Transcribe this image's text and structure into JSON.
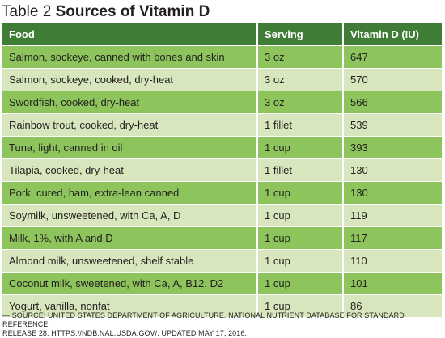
{
  "title": {
    "prefix": "Table 2",
    "main": "Sources of Vitamin D"
  },
  "table": {
    "headers": [
      "Food",
      "Serving",
      "Vitamin D (IU)"
    ],
    "rows": [
      [
        "Salmon, sockeye, canned with bones and skin",
        "3 oz",
        "647"
      ],
      [
        "Salmon, sockeye, cooked, dry-heat",
        "3 oz",
        "570"
      ],
      [
        "Swordfish, cooked, dry-heat",
        "3 oz",
        "566"
      ],
      [
        "Rainbow trout, cooked, dry-heat",
        "1 fillet",
        "539"
      ],
      [
        "Tuna, light, canned in oil",
        "1 cup",
        "393"
      ],
      [
        "Tilapia, cooked, dry-heat",
        "1 fillet",
        "130"
      ],
      [
        "Pork, cured, ham, extra-lean canned",
        "1 cup",
        "130"
      ],
      [
        "Soymilk, unsweetened, with Ca, A, D",
        "1 cup",
        "119"
      ],
      [
        "Milk, 1%, with A and D",
        "1 cup",
        "117"
      ],
      [
        "Almond milk, unsweetened, shelf stable",
        "1 cup",
        "110"
      ],
      [
        "Coconut milk, sweetened, with Ca, A, B12, D2",
        "1 cup",
        "101"
      ],
      [
        "Yogurt, vanilla, nonfat",
        "1 cup",
        "86"
      ]
    ]
  },
  "source": {
    "line1": "— SOURCE: UNITED STATES DEPARTMENT OF AGRICULTURE. NATIONAL NUTRIENT DATABASE FOR STANDARD REFERENCE,",
    "line2": "RELEASE 28. HTTPS://NDB.NAL.USDA.GOV/. UPDATED MAY 17, 2016."
  },
  "colors": {
    "header_bg": "#3f7d37",
    "row_dark": "#8dc55c",
    "row_light": "#d8e6bd"
  }
}
